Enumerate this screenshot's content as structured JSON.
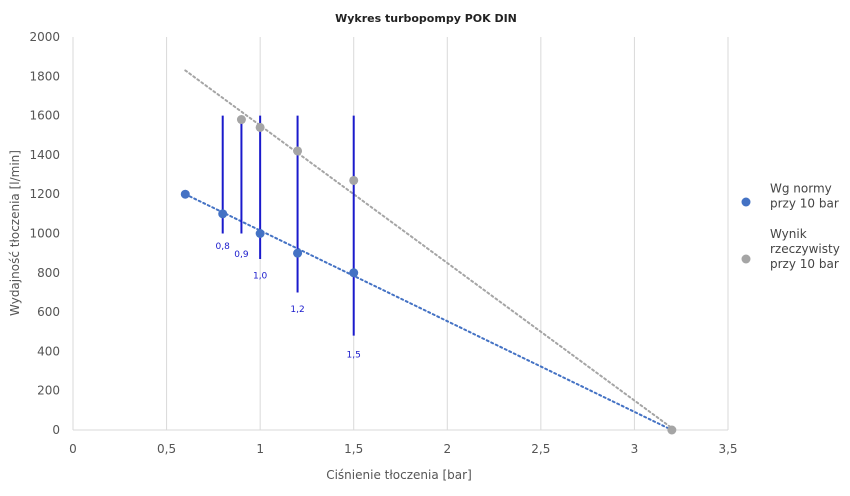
{
  "chart_data": {
    "type": "scatter",
    "title": "Wykres turbopompy POK DIN",
    "xlabel": "Ciśnienie tłoczenia [bar]",
    "ylabel": "Wydajność tłoczenia [l/min]",
    "xlim": [
      0,
      3.5
    ],
    "ylim": [
      0,
      2000
    ],
    "x_ticks": [
      0,
      0.5,
      1,
      1.5,
      2,
      2.5,
      3,
      3.5
    ],
    "x_tick_labels": [
      "0",
      "0,5",
      "1",
      "1,5",
      "2",
      "2,5",
      "3",
      "3,5"
    ],
    "y_ticks": [
      0,
      200,
      400,
      600,
      800,
      1000,
      1200,
      1400,
      1600,
      1800,
      2000
    ],
    "y_tick_labels": [
      "0",
      "200",
      "400",
      "600",
      "800",
      "1000",
      "1200",
      "1400",
      "1600",
      "1800",
      "2000"
    ],
    "grid": "vertical",
    "legend_position": "right",
    "series": [
      {
        "name": "Wg normy przy 10 bar",
        "legend_lines": [
          "Wg normy",
          "przy 10 bar"
        ],
        "color": "#4472c4",
        "x": [
          0.6,
          0.8,
          1.0,
          1.2,
          1.5
        ],
        "y": [
          1200,
          1100,
          1000,
          900,
          800
        ],
        "trendline": {
          "x": [
            0.6,
            3.2
          ],
          "y": [
            1200,
            0
          ]
        }
      },
      {
        "name": "Wynik rzeczywisty przy 10 bar",
        "legend_lines": [
          "Wynik",
          "rzeczywisty",
          "przy 10 bar"
        ],
        "color": "#a5a5a5",
        "x": [
          0.9,
          1.0,
          1.2,
          1.5,
          3.2
        ],
        "y": [
          1580,
          1540,
          1420,
          1270,
          0
        ],
        "trendline": {
          "x": [
            0.6,
            3.2
          ],
          "y": [
            1830,
            10
          ]
        }
      }
    ],
    "error_bars": {
      "color": "#1a1acc",
      "items": [
        {
          "x": 0.8,
          "y_low": 1000,
          "y_high": 1600,
          "label": "0,8",
          "label_y": 920
        },
        {
          "x": 0.9,
          "y_low": 1000,
          "y_high": 1600,
          "label": "0,9",
          "label_y": 880
        },
        {
          "x": 1.0,
          "y_low": 870,
          "y_high": 1600,
          "label": "1,0",
          "label_y": 770
        },
        {
          "x": 1.2,
          "y_low": 700,
          "y_high": 1600,
          "label": "1,2",
          "label_y": 600
        },
        {
          "x": 1.5,
          "y_low": 480,
          "y_high": 1600,
          "label": "1,5",
          "label_y": 370
        }
      ]
    }
  }
}
